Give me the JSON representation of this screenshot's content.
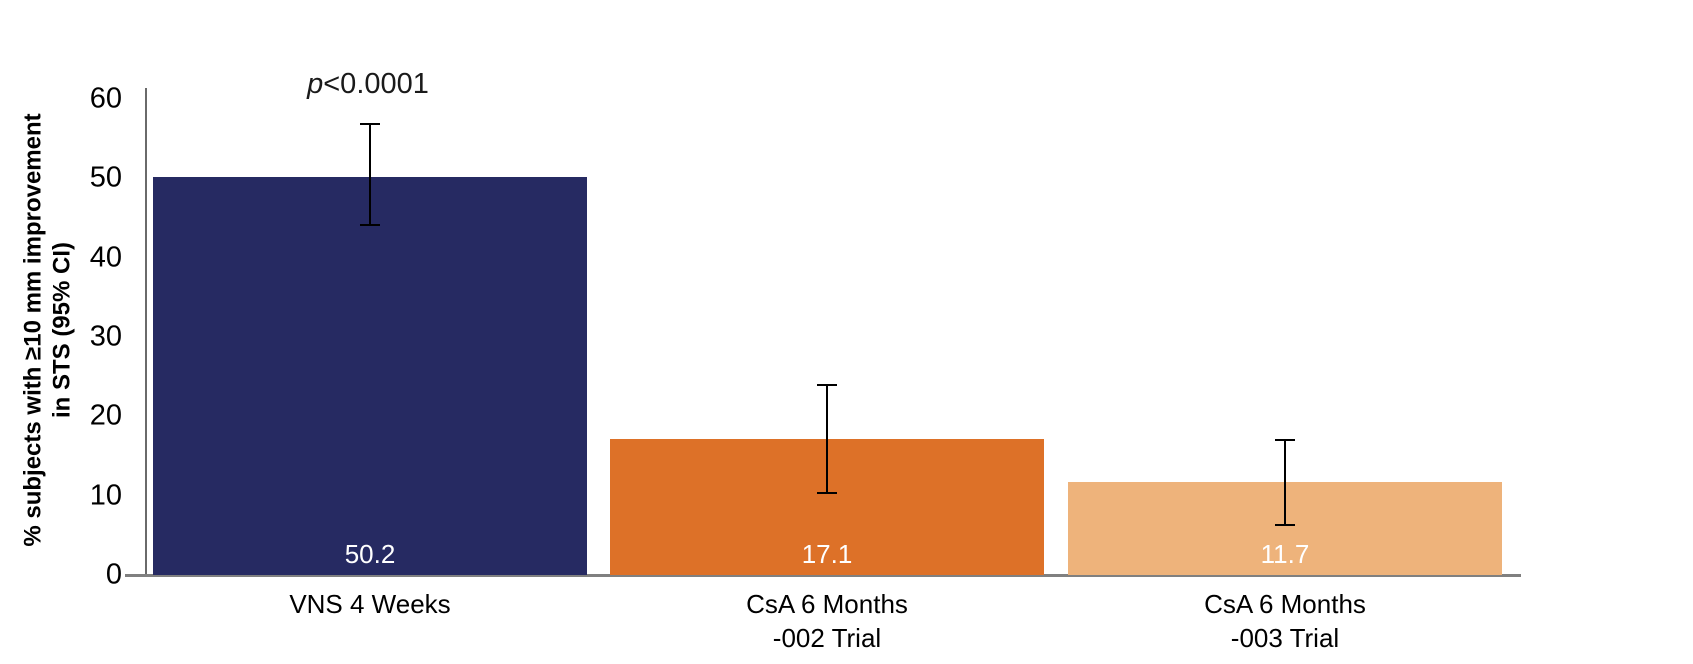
{
  "chart_data": {
    "type": "bar",
    "title": "",
    "xlabel": "",
    "ylabel": "% subjects with ≥10 mm improvement in STS (95% CI)",
    "ylabel_lines": [
      "% subjects with ≥10 mm improvement",
      "in STS (95% CI)"
    ],
    "ylim": [
      0,
      60
    ],
    "yticks": [
      0,
      10,
      20,
      30,
      40,
      50,
      60
    ],
    "grid": false,
    "legend": null,
    "annotation": {
      "text": "p<0.0001",
      "italic_part": "p",
      "rest_part": "<0.0001",
      "above_category": "VNS 4 Weeks"
    },
    "categories": [
      "VNS 4 Weeks",
      "CsA 6 Months -002 Trial",
      "CsA 6 Months -003 Trial"
    ],
    "values": [
      50.2,
      17.1,
      11.7
    ],
    "bars": [
      {
        "category_lines": [
          "VNS 4 Weeks"
        ],
        "value": 50.2,
        "value_label": "50.2",
        "ci_low": 44.1,
        "ci_high": 56.8,
        "color": "#262A62"
      },
      {
        "category_lines": [
          "CsA 6 Months",
          "-002 Trial"
        ],
        "value": 17.1,
        "value_label": "17.1",
        "ci_low": 10.3,
        "ci_high": 23.9,
        "color": "#DD7128"
      },
      {
        "category_lines": [
          "CsA 6 Months",
          "-003 Trial"
        ],
        "value": 11.7,
        "value_label": "11.7",
        "ci_low": 6.3,
        "ci_high": 17.0,
        "color": "#EEB37B"
      }
    ],
    "error_bar_color": "#000000",
    "baseline_color": "#808080",
    "axis_line_color": "#6a6a6a",
    "tick_label_color": "#000000",
    "value_label_color": "#ffffff"
  }
}
